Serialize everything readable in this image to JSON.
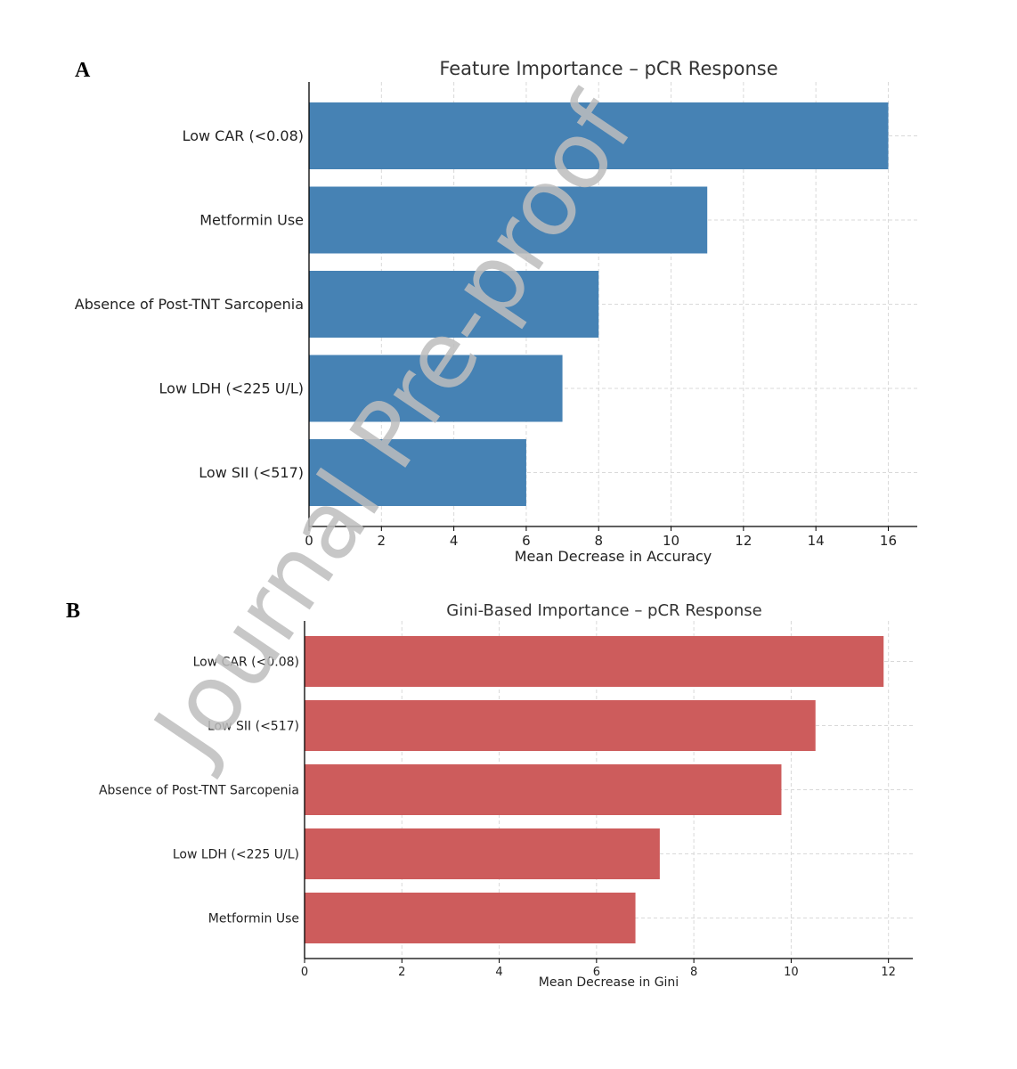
{
  "panel_labels": [
    "A",
    "B"
  ],
  "watermark": "Journal Pre-proof",
  "colors": {
    "panel_a_bar": "#4682b4",
    "panel_b_bar": "#cd5c5c",
    "watermark": "#bdbdbd",
    "grid": "#d9d9d9"
  },
  "chart_data": [
    {
      "type": "bar",
      "orientation": "horizontal",
      "title": "Feature Importance – pCR Response",
      "xlabel": "Mean Decrease in Accuracy",
      "ylabel": "",
      "categories": [
        "Low CAR (<0.08)",
        "Metformin Use",
        "Absence of Post-TNT Sarcopenia",
        "Low LDH (<225 U/L)",
        "Low SII (<517)"
      ],
      "values": [
        16,
        11,
        8,
        7,
        6
      ],
      "xlim": [
        0,
        16.8
      ],
      "xticks": [
        0,
        2,
        4,
        6,
        8,
        10,
        12,
        14,
        16
      ],
      "grid": true
    },
    {
      "type": "bar",
      "orientation": "horizontal",
      "title": "Gini-Based Importance – pCR Response",
      "xlabel": "Mean Decrease in Gini",
      "ylabel": "",
      "categories": [
        "Low CAR (<0.08)",
        "Low SII (<517)",
        "Absence of Post-TNT Sarcopenia",
        "Low LDH (<225 U/L)",
        "Metformin Use"
      ],
      "values": [
        11.9,
        10.5,
        9.8,
        7.3,
        6.8
      ],
      "xlim": [
        0,
        12.5
      ],
      "xticks": [
        0,
        2,
        4,
        6,
        8,
        10,
        12
      ],
      "grid": true
    }
  ]
}
